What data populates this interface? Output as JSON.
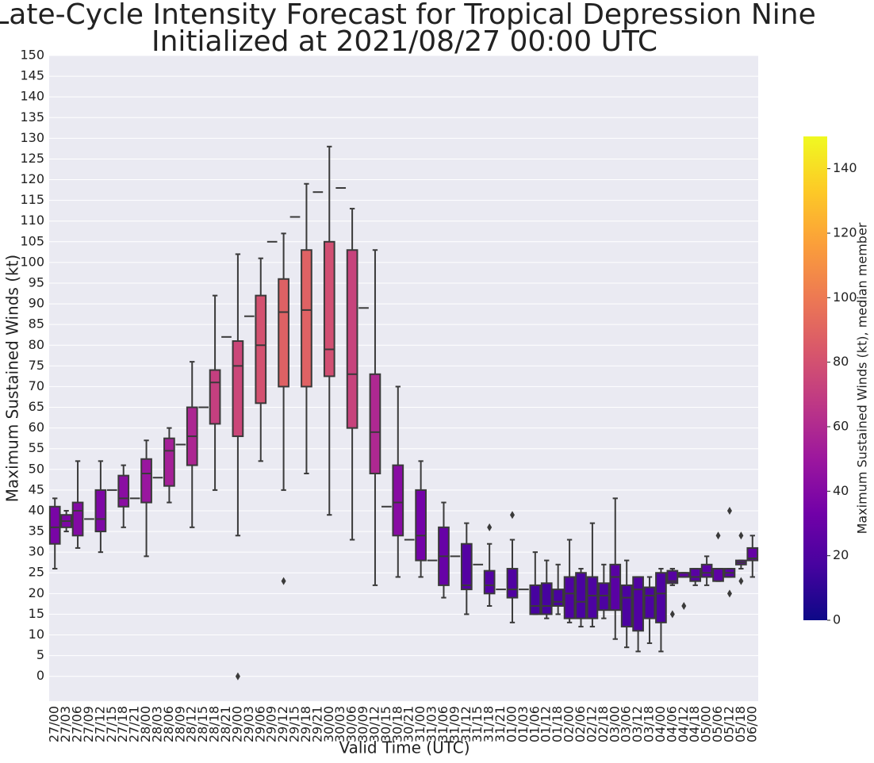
{
  "chart_data": {
    "type": "box",
    "title": "Late-Cycle Intensity Forecast for Tropical Depression Nine",
    "subtitle": "Initialized at 2021/08/27 00:00 UTC",
    "x_label": "Valid Time (UTC)",
    "y_label": "Maximum Sustained Winds (kt)",
    "colorbar_label": "Maximum Sustained Winds (kt), median member",
    "categories": [
      "27/00",
      "27/03",
      "27/06",
      "27/09",
      "27/12",
      "27/15",
      "27/18",
      "27/21",
      "28/00",
      "28/03",
      "28/06",
      "28/09",
      "28/12",
      "28/15",
      "28/18",
      "28/21",
      "29/00",
      "29/03",
      "29/06",
      "29/09",
      "29/12",
      "29/15",
      "29/18",
      "29/21",
      "30/00",
      "30/03",
      "30/06",
      "30/09",
      "30/12",
      "30/15",
      "30/18",
      "30/21",
      "31/00",
      "31/03",
      "31/06",
      "31/09",
      "31/12",
      "31/15",
      "31/18",
      "31/21",
      "01/00",
      "01/03",
      "01/06",
      "01/12",
      "01/18",
      "02/00",
      "02/06",
      "02/12",
      "02/18",
      "03/00",
      "03/06",
      "03/12",
      "03/18",
      "04/00",
      "04/06",
      "04/12",
      "04/18",
      "05/00",
      "05/06",
      "05/12",
      "05/18",
      "06/00"
    ],
    "boxes": [
      {
        "whislo": 26,
        "q1": 32,
        "med": 36,
        "q3": 41,
        "whishi": 43
      },
      {
        "whislo": 35,
        "q1": 36,
        "med": 37.5,
        "q3": 39,
        "whishi": 40
      },
      {
        "whislo": 31,
        "q1": 34,
        "med": 40,
        "q3": 42,
        "whishi": 52
      },
      {
        "med": 38
      },
      {
        "whislo": 30,
        "q1": 35,
        "med": 38,
        "q3": 45,
        "whishi": 52
      },
      {
        "med": 45
      },
      {
        "whislo": 36,
        "q1": 41,
        "med": 43,
        "q3": 48.5,
        "whishi": 51
      },
      {
        "med": 43
      },
      {
        "whislo": 29,
        "q1": 42,
        "med": 49,
        "q3": 52.5,
        "whishi": 57
      },
      {
        "med": 48
      },
      {
        "whislo": 42,
        "q1": 46,
        "med": 54.5,
        "q3": 57.5,
        "whishi": 60
      },
      {
        "med": 56
      },
      {
        "whislo": 36,
        "q1": 51,
        "med": 58,
        "q3": 65,
        "whishi": 76
      },
      {
        "med": 65
      },
      {
        "whislo": 45,
        "q1": 61,
        "med": 71,
        "q3": 74,
        "whishi": 92
      },
      {
        "med": 82
      },
      {
        "whislo": 34,
        "q1": 58,
        "med": 75,
        "q3": 81,
        "whishi": 102,
        "fliers": [
          0
        ]
      },
      {
        "med": 87
      },
      {
        "whislo": 52,
        "q1": 66,
        "med": 80,
        "q3": 92,
        "whishi": 101
      },
      {
        "med": 105
      },
      {
        "whislo": 45,
        "q1": 70,
        "med": 88,
        "q3": 96,
        "whishi": 107,
        "fliers": [
          23
        ]
      },
      {
        "med": 111
      },
      {
        "whislo": 49,
        "q1": 70,
        "med": 88.5,
        "q3": 103,
        "whishi": 119
      },
      {
        "med": 117
      },
      {
        "whislo": 39,
        "q1": 72.5,
        "med": 79,
        "q3": 105,
        "whishi": 128
      },
      {
        "med": 118
      },
      {
        "whislo": 33,
        "q1": 60,
        "med": 73,
        "q3": 103,
        "whishi": 113
      },
      {
        "med": 89
      },
      {
        "whislo": 22,
        "q1": 49,
        "med": 59,
        "q3": 73,
        "whishi": 103
      },
      {
        "med": 41
      },
      {
        "whislo": 24,
        "q1": 34,
        "med": 42,
        "q3": 51,
        "whishi": 70
      },
      {
        "med": 33
      },
      {
        "whislo": 24,
        "q1": 28,
        "med": 34,
        "q3": 45,
        "whishi": 52
      },
      {
        "med": 28
      },
      {
        "whislo": 19,
        "q1": 22,
        "med": 29,
        "q3": 36,
        "whishi": 42
      },
      {
        "med": 29
      },
      {
        "whislo": 15,
        "q1": 21,
        "med": 22,
        "q3": 32,
        "whishi": 37
      },
      {
        "med": 27
      },
      {
        "whislo": 17,
        "q1": 20,
        "med": 22,
        "q3": 25.5,
        "whishi": 32,
        "fliers": [
          36
        ]
      },
      {
        "med": 21
      },
      {
        "whislo": 13,
        "q1": 19,
        "med": 21,
        "q3": 26,
        "whishi": 33,
        "fliers": [
          39
        ]
      },
      {
        "med": 21
      },
      {
        "whislo": 15,
        "q1": 15,
        "med": 17,
        "q3": 22,
        "whishi": 30
      },
      {
        "whislo": 14,
        "q1": 15,
        "med": 17,
        "q3": 22.5,
        "whishi": 28
      },
      {
        "whislo": 15,
        "q1": 17,
        "med": 18,
        "q3": 21,
        "whishi": 27
      },
      {
        "whislo": 13,
        "q1": 14,
        "med": 20,
        "q3": 24,
        "whishi": 33
      },
      {
        "whislo": 12,
        "q1": 14,
        "med": 18,
        "q3": 25,
        "whishi": 26
      },
      {
        "whislo": 12,
        "q1": 14,
        "med": 19.5,
        "q3": 24,
        "whishi": 37
      },
      {
        "whislo": 14,
        "q1": 16,
        "med": 19.5,
        "q3": 22.5,
        "whishi": 27
      },
      {
        "whislo": 9,
        "q1": 16,
        "med": 24,
        "q3": 27,
        "whishi": 43
      },
      {
        "whislo": 7,
        "q1": 12,
        "med": 19,
        "q3": 22,
        "whishi": 28
      },
      {
        "whislo": 6,
        "q1": 11,
        "med": 21,
        "q3": 24,
        "whishi": 24
      },
      {
        "whislo": 8,
        "q1": 14,
        "med": 19.5,
        "q3": 21.5,
        "whishi": 24
      },
      {
        "whislo": 6,
        "q1": 13,
        "med": 20,
        "q3": 25,
        "whishi": 26
      },
      {
        "whislo": 22,
        "q1": 22.5,
        "med": 23,
        "q3": 25.5,
        "whishi": 26,
        "fliers": [
          15
        ]
      },
      {
        "whislo": 24,
        "q1": 24,
        "med": 25,
        "q3": 25,
        "whishi": 25,
        "fliers": [
          17
        ]
      },
      {
        "whislo": 22,
        "q1": 23,
        "med": 24,
        "q3": 26,
        "whishi": 26
      },
      {
        "whislo": 22,
        "q1": 24,
        "med": 25,
        "q3": 27,
        "whishi": 29
      },
      {
        "whislo": 23,
        "q1": 23,
        "med": 26,
        "q3": 26,
        "whishi": 26,
        "fliers": [
          34
        ]
      },
      {
        "whislo": 24,
        "q1": 24,
        "med": 25,
        "q3": 26,
        "whishi": 26,
        "fliers": [
          40,
          20
        ]
      },
      {
        "whislo": 26,
        "q1": 27,
        "med": 27.5,
        "q3": 28,
        "whishi": 28,
        "fliers": [
          34,
          23
        ]
      },
      {
        "whislo": 24,
        "q1": 28,
        "med": 28.5,
        "q3": 31,
        "whishi": 34
      }
    ],
    "ylim": [
      -6,
      150
    ],
    "yticks": [
      0,
      5,
      10,
      15,
      20,
      25,
      30,
      35,
      40,
      45,
      50,
      55,
      60,
      65,
      70,
      75,
      80,
      85,
      90,
      95,
      100,
      105,
      110,
      115,
      120,
      125,
      130,
      135,
      140,
      145,
      150
    ],
    "grid": true,
    "colormap": [
      "#0d0887",
      "#46039f",
      "#7201a8",
      "#9c179e",
      "#bd3786",
      "#d8576b",
      "#ed7953",
      "#fb9f3a",
      "#fdca26",
      "#f0f921"
    ],
    "clim": [
      0,
      150
    ],
    "cticks": [
      0,
      20,
      40,
      60,
      80,
      100,
      120,
      140
    ]
  }
}
